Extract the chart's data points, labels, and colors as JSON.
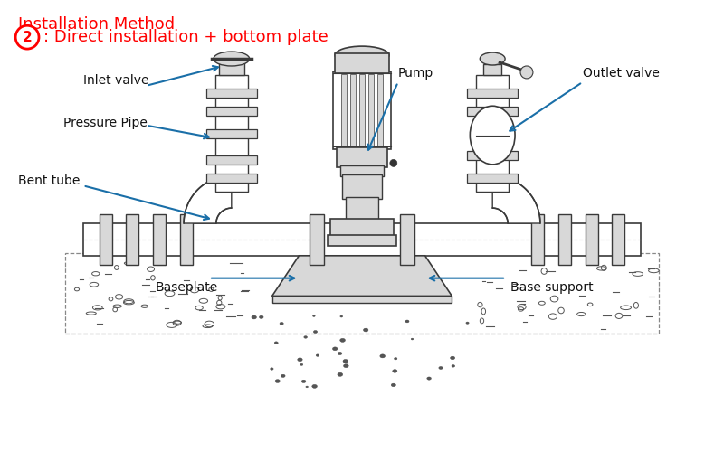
{
  "title1": "Installation Method",
  "title2": ": Direct installation + bottom plate",
  "title_color": "#ff0000",
  "arrow_color": "#1a6fa8",
  "text_color": "#111111",
  "bg_color": "#ffffff",
  "labels": {
    "inlet_valve": "Inlet valve",
    "pressure_pipe": "Pressure Pipe",
    "bent_tube": "Bent tube",
    "baseplate": "Baseplate",
    "pump": "Pump",
    "outlet_valve": "Outlet valve",
    "base_support": "Base support"
  },
  "draw_color": "#3a3a3a",
  "gray_fill": "#d8d8d8",
  "white_fill": "#ffffff",
  "dark_fill": "#888888"
}
